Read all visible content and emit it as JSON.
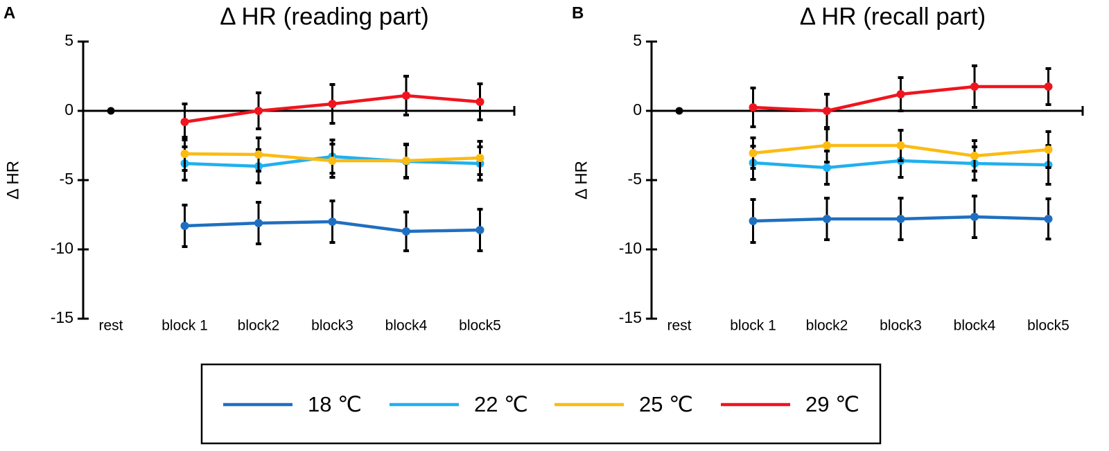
{
  "chart_data": [
    {
      "type": "line",
      "panel_label": "A",
      "title": "Δ HR (reading part)",
      "y_label": "Δ HR",
      "categories": [
        "rest",
        "block 1",
        "block2",
        "block3",
        "block4",
        "block5"
      ],
      "rest_value": 0,
      "rest_color": "#000000",
      "ylim": [
        -15,
        5
      ],
      "yticks": [
        5,
        0,
        -5,
        -10,
        -15
      ],
      "series": [
        {
          "name": "18 ℃",
          "color": "#1f6fc0",
          "values": [
            null,
            -8.3,
            -8.1,
            -8.0,
            -8.7,
            -8.6
          ],
          "errors": [
            null,
            1.5,
            1.5,
            1.5,
            1.4,
            1.5
          ]
        },
        {
          "name": "22 ℃",
          "color": "#1fb0ef",
          "values": [
            null,
            -3.8,
            -4.0,
            -3.3,
            -3.65,
            -3.8
          ],
          "errors": [
            null,
            1.2,
            1.2,
            1.2,
            1.2,
            1.2
          ]
        },
        {
          "name": "25 ℃",
          "color": "#fbbb12",
          "values": [
            null,
            -3.1,
            -3.15,
            -3.6,
            -3.6,
            -3.4
          ],
          "errors": [
            null,
            1.2,
            1.2,
            1.2,
            1.2,
            1.2
          ]
        },
        {
          "name": "29 ℃",
          "color": "#f0141e",
          "values": [
            null,
            -0.8,
            0,
            0.5,
            1.1,
            0.65
          ],
          "errors": [
            null,
            1.3,
            1.3,
            1.4,
            1.4,
            1.3
          ]
        }
      ]
    },
    {
      "type": "line",
      "panel_label": "B",
      "title": "Δ HR (recall part)",
      "y_label": "Δ HR",
      "categories": [
        "rest",
        "block 1",
        "block2",
        "block3",
        "block4",
        "block5"
      ],
      "rest_value": 0,
      "rest_color": "#000000",
      "ylim": [
        -15,
        5
      ],
      "yticks": [
        5,
        0,
        -5,
        -10,
        -15
      ],
      "series": [
        {
          "values": [
            null,
            -7.95,
            -7.8,
            -7.8,
            -7.65,
            -7.8
          ],
          "errors": [
            null,
            1.55,
            1.5,
            1.5,
            1.5,
            1.45
          ]
        },
        {
          "values": [
            null,
            -3.75,
            -4.1,
            -3.6,
            -3.8,
            -3.9
          ],
          "errors": [
            null,
            1.2,
            1.2,
            1.2,
            1.2,
            1.4
          ]
        },
        {
          "values": [
            null,
            -3.05,
            -2.5,
            -2.5,
            -3.25,
            -2.8
          ],
          "errors": [
            null,
            1.1,
            1.2,
            1.1,
            1.1,
            1.3
          ]
        },
        {
          "values": [
            null,
            0.25,
            0,
            1.2,
            1.75,
            1.75
          ],
          "errors": [
            null,
            1.4,
            1.2,
            1.2,
            1.5,
            1.3
          ]
        }
      ]
    }
  ]
}
